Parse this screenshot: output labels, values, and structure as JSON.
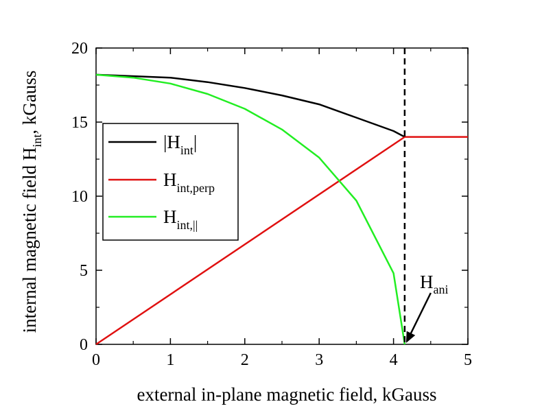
{
  "chart_data": {
    "type": "line",
    "xlabel": "external in-plane magnetic field, kGauss",
    "ylabel_main": "internal magnetic field H",
    "ylabel_sub": "int",
    "ylabel_tail": ", kGauss",
    "xlim": [
      0,
      5
    ],
    "ylim": [
      0,
      20
    ],
    "xticks": [
      "0",
      "1",
      "2",
      "3",
      "4",
      "5"
    ],
    "yticks": [
      "0",
      "5",
      "10",
      "15",
      "20"
    ],
    "grid": false,
    "legend_position": "left-middle",
    "series": [
      {
        "legend_main": "|H",
        "legend_sub": "int",
        "legend_tail": "|",
        "color": "#000000",
        "x": [
          0,
          1.0,
          1.5,
          2.0,
          2.5,
          3.0,
          3.5,
          4.0,
          4.15
        ],
        "y": [
          18.2,
          18.0,
          17.7,
          17.3,
          16.8,
          16.2,
          15.3,
          14.4,
          14.0
        ]
      },
      {
        "legend_main": "H",
        "legend_sub": "int,perp",
        "legend_tail": "",
        "color": "#e01010",
        "x": [
          0,
          4.15,
          5.0
        ],
        "y": [
          0,
          14.0,
          14.0
        ]
      },
      {
        "legend_main": "H",
        "legend_sub": "int,||",
        "legend_tail": "",
        "color": "#22ee22",
        "x": [
          0,
          0.5,
          1.0,
          1.5,
          2.0,
          2.5,
          3.0,
          3.5,
          4.0,
          4.15
        ],
        "y": [
          18.2,
          18.0,
          17.6,
          16.9,
          15.9,
          14.5,
          12.6,
          9.7,
          4.8,
          0
        ]
      }
    ],
    "annotation": {
      "label_main": "H",
      "label_sub": "ani",
      "x": 4.15
    }
  }
}
